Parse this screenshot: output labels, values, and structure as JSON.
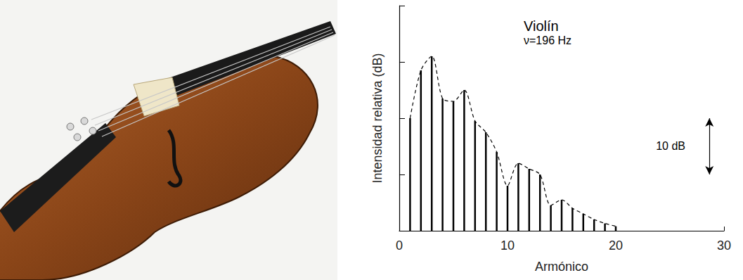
{
  "chart_data": {
    "type": "bar",
    "title": "Violín",
    "subtitle": "ν=196 Hz",
    "x_label": "Armónico",
    "y_label": "Intensidad relativa (dB)",
    "x": [
      1,
      2,
      3,
      4,
      5,
      6,
      7,
      8,
      9,
      10,
      11,
      12,
      13,
      14,
      15,
      16,
      17,
      18,
      19,
      20
    ],
    "series": [
      {
        "type": "bar",
        "color": "#000000",
        "values": [
          20,
          28.5,
          31,
          23.5,
          23,
          25,
          19.5,
          17.5,
          14,
          8,
          12,
          11,
          10,
          4.5,
          5.5,
          4,
          3,
          2,
          1.3,
          0.8
        ]
      },
      {
        "type": "line",
        "color": "#000000",
        "line_style": "dashed",
        "marker": "none",
        "values": [
          20,
          28.5,
          31,
          23.5,
          23,
          25,
          19.5,
          17.5,
          14,
          8,
          12,
          11,
          10,
          4.5,
          5.5,
          4,
          3,
          2,
          1.3,
          0.8
        ]
      }
    ],
    "xlim": [
      0,
      30
    ],
    "xticks": [
      0,
      10,
      20,
      30
    ],
    "ylim": [
      0,
      40
    ],
    "yticks": [
      0,
      10,
      20,
      30,
      40
    ],
    "tick_labels": "x",
    "grid": false,
    "annotations": [
      {
        "text": "10 dB",
        "span": 10
      }
    ]
  }
}
